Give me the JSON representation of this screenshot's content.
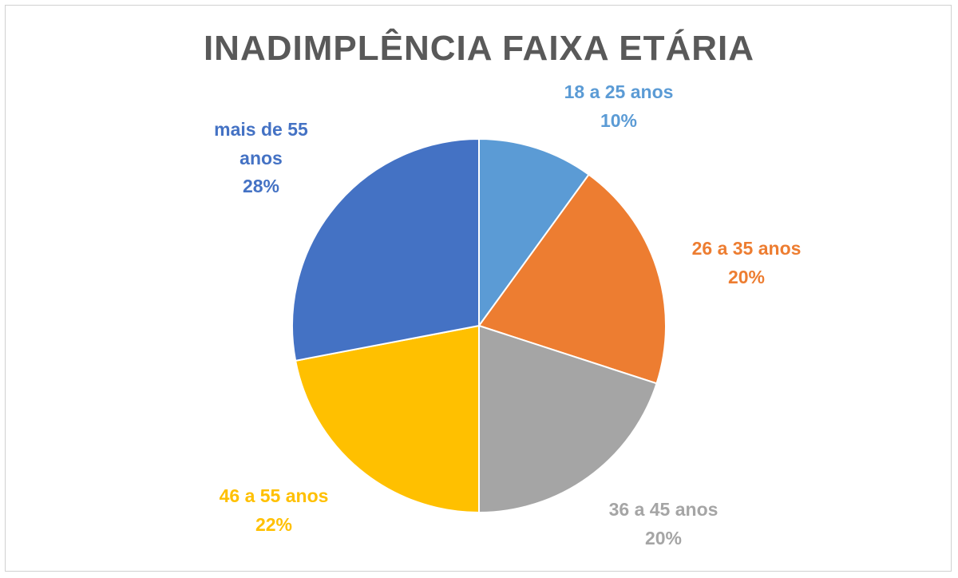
{
  "chart_data": {
    "type": "pie",
    "title": "INADIMPLÊNCIA FAIXA ETÁRIA",
    "slices": [
      {
        "label_lines": [
          "18 a 25 anos"
        ],
        "value": 10,
        "value_label": "10%",
        "color": "#5B9BD5"
      },
      {
        "label_lines": [
          "26 a 35 anos"
        ],
        "value": 20,
        "value_label": "20%",
        "color": "#ED7D31"
      },
      {
        "label_lines": [
          "36 a 45 anos"
        ],
        "value": 20,
        "value_label": "20%",
        "color": "#A5A5A5"
      },
      {
        "label_lines": [
          "46 a 55 anos"
        ],
        "value": 22,
        "value_label": "22%",
        "color": "#FFC000"
      },
      {
        "label_lines": [
          "mais de 55",
          "anos"
        ],
        "value": 28,
        "value_label": "28%",
        "color": "#4472C4"
      }
    ]
  }
}
